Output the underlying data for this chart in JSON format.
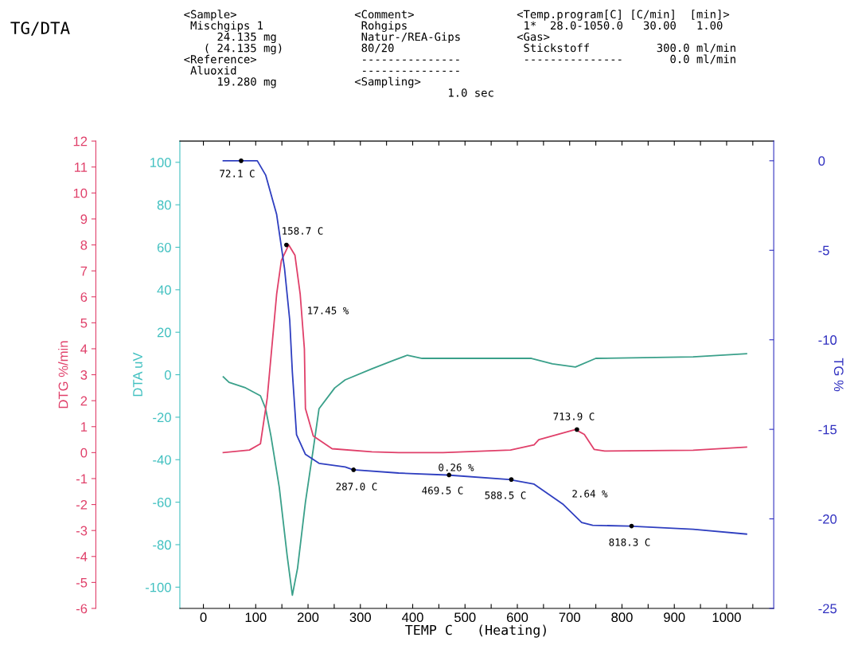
{
  "chart_data": {
    "type": "line",
    "title": "TG/DTA",
    "xlabel": "TEMP C   (Heating)",
    "ylabel": "DTG %/min",
    "y2label": "TG %",
    "y3label": "DTA uV",
    "xlim": [
      -45,
      1090
    ],
    "xticks": [
      0,
      {
        "value": 50,
        "label": null
      },
      100,
      {
        "value": 150,
        "label": null
      },
      200,
      {
        "value": 250,
        "label": null
      },
      300,
      {
        "value": 350,
        "label": null
      },
      400,
      {
        "value": 450,
        "label": null
      },
      500,
      {
        "value": 550,
        "label": null
      },
      600,
      {
        "value": 650,
        "label": null
      },
      700,
      {
        "value": 750,
        "label": null
      },
      800,
      {
        "value": 850,
        "label": null
      },
      900,
      {
        "value": 950,
        "label": null
      },
      1000,
      {
        "value": 1050,
        "label": null
      }
    ],
    "ylim": [
      -6,
      12
    ],
    "yticks": [
      -6,
      -5,
      -4,
      -3,
      -2,
      -1,
      0,
      1,
      2,
      3,
      4,
      5,
      6,
      7,
      8,
      9,
      10,
      11,
      12
    ],
    "y2lim": [
      -25,
      1.1
    ],
    "y2ticks": [
      -25,
      -20,
      -15,
      -10,
      -5,
      0
    ],
    "y3lim": [
      -110,
      110
    ],
    "y3ticks": [
      -100,
      -80,
      -60,
      -40,
      -20,
      0,
      20,
      40,
      60,
      80,
      100
    ],
    "grid": false,
    "legend": false,
    "marker": "none",
    "line_style": "solid",
    "series": [
      {
        "color": "#e0406a",
        "axis": "y",
        "x": [
          38,
          88,
          109,
          122,
          140,
          149,
          163,
          175,
          185,
          193,
          195,
          210,
          246,
          322,
          373,
          458,
          587,
          632,
          641,
          711,
          728,
          747,
          767,
          936,
          1038
        ],
        "values": [
          0.0,
          0.1,
          0.34,
          2.1,
          6.1,
          7.4,
          8.0,
          7.6,
          6.1,
          4.0,
          1.7,
          0.64,
          0.15,
          0.03,
          0.0,
          0.0,
          0.1,
          0.3,
          0.5,
          0.89,
          0.7,
          0.12,
          0.06,
          0.09,
          0.21
        ]
      },
      {
        "color": "#3aa08a",
        "axis": "y3",
        "x": [
          38,
          49,
          79,
          109,
          119,
          129,
          145,
          160,
          170,
          180,
          195,
          210,
          221,
          251,
          271,
          322,
          362,
          390,
          418,
          627,
          667,
          711,
          750,
          936,
          1038
        ],
        "values": [
          -1.0,
          -3.6,
          -6.0,
          -9.9,
          -16,
          -28.7,
          -53,
          -85,
          -103.8,
          -91,
          -60,
          -35,
          -16,
          -6.2,
          -2.4,
          2.8,
          6.6,
          9.2,
          7.7,
          7.7,
          5.1,
          3.6,
          7.7,
          8.4,
          9.9
        ]
      },
      {
        "color": "#2f3fc0",
        "axis": "y2",
        "x": [
          38,
          103,
          119,
          140,
          155,
          165,
          170,
          178,
          195,
          221,
          271,
          286,
          373,
          466,
          584,
          632,
          688,
          723,
          744,
          813,
          936,
          1038
        ],
        "values": [
          0.0,
          0.0,
          -0.8,
          -3.0,
          -6.0,
          -8.9,
          -11.8,
          -15.3,
          -16.4,
          -16.9,
          -17.1,
          -17.26,
          -17.44,
          -17.55,
          -17.8,
          -18.06,
          -19.2,
          -20.2,
          -20.36,
          -20.4,
          -20.58,
          -20.85
        ]
      },
      {
        "type": "scatter",
        "color": "#000000",
        "axis": "y2",
        "marker": "circle",
        "x": [
          72.1,
          287.0,
          469.5,
          588.5,
          818.3
        ],
        "values": [
          0.0,
          -17.26,
          -17.55,
          -17.8,
          -20.4
        ]
      },
      {
        "type": "scatter",
        "color": "#000000",
        "axis": "y",
        "marker": "circle",
        "x": [
          158.7,
          713.9
        ],
        "values": [
          8.0,
          0.89
        ]
      }
    ],
    "annotations": [
      "<Sample>\n Mischgips 1\n     24.135 mg\n   ( 24.135 mg)\n<Reference>\n Aluoxid\n     19.280 mg",
      "<Comment>\n Rohgips\n Natur-/REA-Gips\n 80/20\n ---------------\n ---------------\n<Sampling>\n              1.0 sec",
      "<Temp.program[C] [C/min]  [min]>\n 1*  28.0-1050.0   30.00   1.00\n<Gas>\n Stickstoff          300.0 ml/min\n ---------------       0.0 ml/min",
      "17.45 %",
      "0.26 %",
      "2.64 %",
      "72.1 C",
      "158.7 C",
      "287.0 C",
      "469.5 C",
      "588.5 C",
      "713.9 C",
      "818.3 C"
    ]
  }
}
